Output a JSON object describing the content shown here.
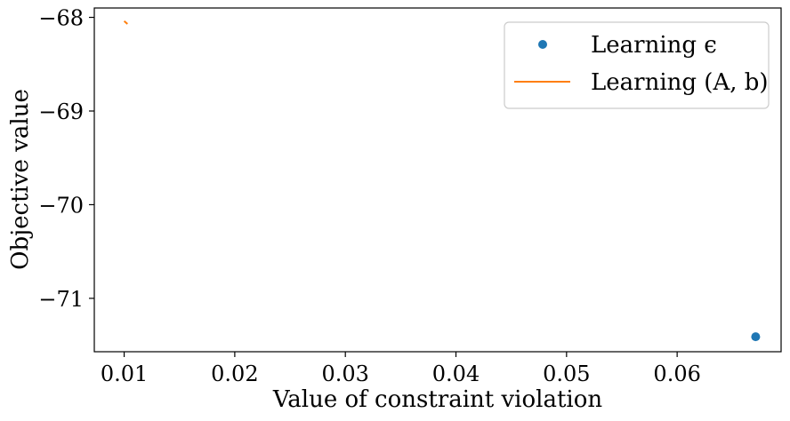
{
  "chart_data": {
    "type": "scatter",
    "title": "",
    "xlabel": "Value of constraint violation",
    "ylabel": "Objective value",
    "xlim": [
      0.0073,
      0.0694
    ],
    "ylim": [
      -71.57,
      -67.9
    ],
    "x_ticks": [
      0.01,
      0.02,
      0.03,
      0.04,
      0.05,
      0.06
    ],
    "x_tick_labels": [
      "0.01",
      "0.02",
      "0.03",
      "0.04",
      "0.05",
      "0.06"
    ],
    "y_ticks": [
      -68,
      -69,
      -70,
      -71
    ],
    "y_tick_labels": [
      "−68",
      "−69",
      "−70",
      "−71"
    ],
    "grid": false,
    "legend_position": "top-right",
    "series": [
      {
        "name": "Learning ϵ",
        "kind": "marker",
        "color": "#1f77b4",
        "points": [
          {
            "x": 0.0671,
            "y": -71.41
          }
        ]
      },
      {
        "name": "Learning (A, b)",
        "kind": "line",
        "color": "#ff7f0e",
        "points": [
          {
            "x": 0.01,
            "y": -68.04
          },
          {
            "x": 0.0103,
            "y": -68.07
          }
        ]
      }
    ]
  }
}
